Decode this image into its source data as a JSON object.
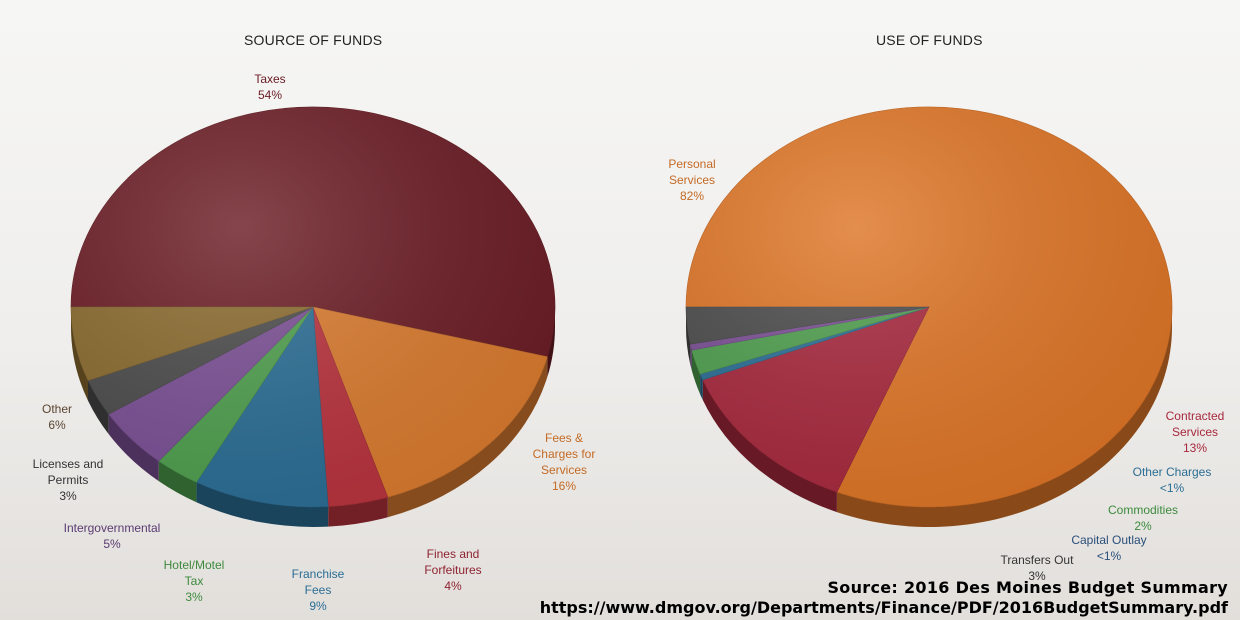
{
  "source": {
    "line1": "Source: 2016 Des Moines Budget Summary",
    "line2": "https://www.dmgov.org/Departments/Finance/PDF/2016BudgetSummary.pdf"
  },
  "chart_data": [
    {
      "type": "pie",
      "title": "SOURCE OF FUNDS",
      "slices": [
        {
          "label": [
            "Taxes"
          ],
          "pct_label": "54%",
          "value": 54,
          "color": "#6b1c24"
        },
        {
          "label": [
            "Fees &",
            "Charges for",
            "Services"
          ],
          "pct_label": "16%",
          "value": 16,
          "color": "#d97a2e"
        },
        {
          "label": [
            "Fines and",
            "Forfeitures"
          ],
          "pct_label": "4%",
          "value": 4,
          "color": "#b8323d"
        },
        {
          "label": [
            "Franchise",
            "Fees"
          ],
          "pct_label": "9%",
          "value": 9,
          "color": "#2a6d94"
        },
        {
          "label": [
            "Hotel/Motel",
            "Tax"
          ],
          "pct_label": "3%",
          "value": 3,
          "color": "#4e9e4e"
        },
        {
          "label": [
            "Intergovernmental"
          ],
          "pct_label": "5%",
          "value": 5,
          "color": "#7a4f94"
        },
        {
          "label": [
            "Licenses and",
            "Permits"
          ],
          "pct_label": "3%",
          "value": 3,
          "color": "#4b4b4b"
        },
        {
          "label": [
            "Other"
          ],
          "pct_label": "6%",
          "value": 6,
          "color": "#8a6a2e"
        }
      ],
      "label_colors": {
        "Taxes": "#6b1c24",
        "Fees & Charges for Services": "#c46a25",
        "Fines and Forfeitures": "#8e2331",
        "Franchise Fees": "#2a6d94",
        "Hotel/Motel Tax": "#3d8a3d",
        "Intergovernmental": "#5a3a72",
        "Licenses and Permits": "#333333",
        "Other": "#5a4630"
      }
    },
    {
      "type": "pie",
      "title": "USE OF FUNDS",
      "slices": [
        {
          "label": [
            "Personal",
            "Services"
          ],
          "pct_label": "82%",
          "value": 82,
          "color": "#de7526"
        },
        {
          "label": [
            "Contracted",
            "Services"
          ],
          "pct_label": "13%",
          "value": 13,
          "color": "#a7283d"
        },
        {
          "label": [
            "Other Charges"
          ],
          "pct_label": "<1%",
          "value": 0.5,
          "color": "#2a6d94"
        },
        {
          "label": [
            "Commodities"
          ],
          "pct_label": "2%",
          "value": 2,
          "color": "#4e9e4e"
        },
        {
          "label": [
            "Capital Outlay"
          ],
          "pct_label": "<1%",
          "value": 0.5,
          "color": "#7a4f94"
        },
        {
          "label": [
            "Transfers Out"
          ],
          "pct_label": "3%",
          "value": 3,
          "color": "#4b4b4b"
        }
      ],
      "label_colors": {
        "Personal Services": "#c46a25",
        "Contracted Services": "#a7283d",
        "Other Charges": "#2a6d94",
        "Commodities": "#3d8a3d",
        "Capital Outlay": "#2a4f7a",
        "Transfers Out": "#333333"
      }
    }
  ]
}
